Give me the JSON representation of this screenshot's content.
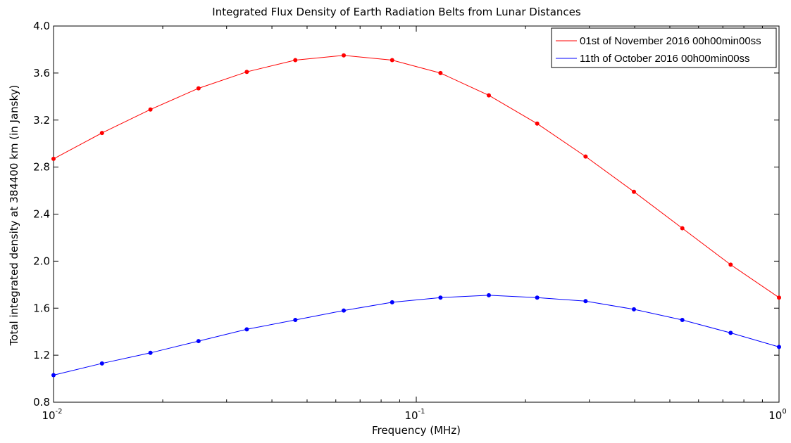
{
  "chart_data": {
    "type": "line",
    "title": "Integrated Flux Density of Earth Radiation Belts from Lunar Distances",
    "xlabel": "Frequency (MHz)",
    "ylabel": "Total integrated density at 384400 km (in Jansky)",
    "xscale": "log",
    "xlim": [
      0.01,
      1
    ],
    "ylim": [
      0.8,
      4.0
    ],
    "x_ticks": [
      {
        "value": 0.01,
        "base": "10",
        "exp": "-2"
      },
      {
        "value": 0.1,
        "base": "10",
        "exp": "-1"
      },
      {
        "value": 1,
        "base": "10",
        "exp": "0"
      }
    ],
    "y_ticks": [
      "0.8",
      "1.2",
      "1.6",
      "2.0",
      "2.4",
      "2.8",
      "3.2",
      "3.6",
      "4.0"
    ],
    "legend_position": "top-right",
    "x": [
      0.01,
      0.0136,
      0.0185,
      0.0251,
      0.0341,
      0.0464,
      0.0631,
      0.0858,
      0.1166,
      0.1585,
      0.2154,
      0.2929,
      0.3981,
      0.5412,
      0.7356,
      1.0
    ],
    "series": [
      {
        "name": "01st of November 2016 00h00min00ss",
        "color": "#ff0000",
        "values": [
          2.87,
          3.09,
          3.29,
          3.47,
          3.61,
          3.71,
          3.75,
          3.71,
          3.6,
          3.41,
          3.17,
          2.89,
          2.59,
          2.28,
          1.97,
          1.69
        ]
      },
      {
        "name": "11th of October 2016 00h00min00ss",
        "color": "#0000ff",
        "values": [
          1.03,
          1.13,
          1.22,
          1.32,
          1.42,
          1.5,
          1.58,
          1.65,
          1.69,
          1.71,
          1.69,
          1.66,
          1.59,
          1.5,
          1.39,
          1.27
        ]
      }
    ]
  }
}
